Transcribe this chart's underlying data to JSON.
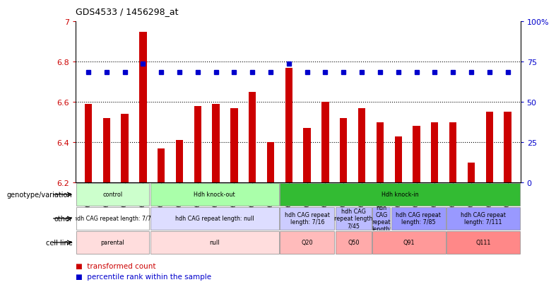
{
  "title": "GDS4533 / 1456298_at",
  "samples": [
    "GSM638129",
    "GSM638130",
    "GSM638131",
    "GSM638132",
    "GSM638133",
    "GSM638134",
    "GSM638135",
    "GSM638136",
    "GSM638137",
    "GSM638138",
    "GSM638139",
    "GSM638140",
    "GSM638141",
    "GSM638142",
    "GSM638143",
    "GSM638144",
    "GSM638145",
    "GSM638146",
    "GSM638147",
    "GSM638148",
    "GSM638149",
    "GSM638150",
    "GSM638151",
    "GSM638152"
  ],
  "bar_values": [
    6.59,
    6.52,
    6.54,
    6.95,
    6.37,
    6.41,
    6.58,
    6.59,
    6.57,
    6.65,
    6.4,
    6.77,
    6.47,
    6.6,
    6.52,
    6.57,
    6.5,
    6.43,
    6.48,
    6.5,
    6.5,
    6.3,
    6.55,
    6.55
  ],
  "percentile_values": [
    6.748,
    6.748,
    6.748,
    6.79,
    6.748,
    6.748,
    6.748,
    6.748,
    6.748,
    6.748,
    6.748,
    6.79,
    6.748,
    6.748,
    6.748,
    6.748,
    6.748,
    6.748,
    6.748,
    6.748,
    6.748,
    6.748,
    6.748,
    6.748
  ],
  "ymin": 6.2,
  "ymax": 7.0,
  "bar_color": "#cc0000",
  "percentile_color": "#0000cc",
  "dotted_lines": [
    6.8,
    6.6,
    6.4
  ],
  "right_axis_ticks": [
    0,
    25,
    50,
    75,
    100
  ],
  "right_axis_values": [
    6.2,
    6.4,
    6.6,
    6.8,
    7.0
  ],
  "genotype_row": {
    "label": "genotype/variation",
    "groups": [
      {
        "text": "control",
        "start": 0,
        "end": 3,
        "color": "#ccffcc"
      },
      {
        "text": "Hdh knock-out",
        "start": 4,
        "end": 10,
        "color": "#aaffaa"
      },
      {
        "text": "Hdh knock-in",
        "start": 11,
        "end": 23,
        "color": "#33bb33"
      }
    ]
  },
  "other_row": {
    "label": "other",
    "groups": [
      {
        "text": "hdh CAG repeat length: 7/7",
        "start": 0,
        "end": 3,
        "color": "#ffffff"
      },
      {
        "text": "hdh CAG repeat length: null",
        "start": 4,
        "end": 10,
        "color": "#ddddff"
      },
      {
        "text": "hdh CAG repeat\nlength: 7/16",
        "start": 11,
        "end": 13,
        "color": "#ccccff"
      },
      {
        "text": "hdh CAG\nrepeat length\n7/45",
        "start": 14,
        "end": 15,
        "color": "#bbbbff"
      },
      {
        "text": "hdh\nCAG\nrepeat\nlength:",
        "start": 16,
        "end": 16,
        "color": "#aaaaff"
      },
      {
        "text": "hdh CAG repeat\nlength: 7/85",
        "start": 17,
        "end": 19,
        "color": "#9999ff"
      },
      {
        "text": "hdh CAG repeat\nlength: 7/111",
        "start": 20,
        "end": 23,
        "color": "#9999ff"
      }
    ]
  },
  "cellline_row": {
    "label": "cell line",
    "groups": [
      {
        "text": "parental",
        "start": 0,
        "end": 3,
        "color": "#ffdddd"
      },
      {
        "text": "null",
        "start": 4,
        "end": 10,
        "color": "#ffdddd"
      },
      {
        "text": "Q20",
        "start": 11,
        "end": 13,
        "color": "#ffbbbb"
      },
      {
        "text": "Q50",
        "start": 14,
        "end": 15,
        "color": "#ffaaaa"
      },
      {
        "text": "Q91",
        "start": 16,
        "end": 19,
        "color": "#ff9999"
      },
      {
        "text": "Q111",
        "start": 20,
        "end": 23,
        "color": "#ff8888"
      }
    ]
  }
}
